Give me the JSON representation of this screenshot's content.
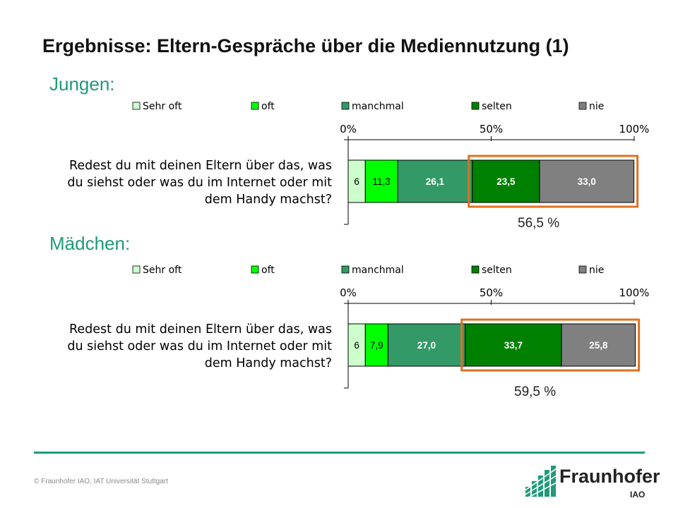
{
  "page": {
    "title": "Ergebnisse: Eltern-Gespräche über die Mediennutzung (1)",
    "copyright": "© Fraunhofer IAO, IAT Universität Stuttgart",
    "logo": {
      "name": "Fraunhofer",
      "sub": "IAO",
      "icon": "fraunhofer-logo-icon"
    }
  },
  "colors": {
    "sehr_oft": "#ccffcc",
    "oft": "#00ff00",
    "manchmal": "#339966",
    "selten": "#008000",
    "nie": "#808080",
    "highlight": "#e07020",
    "accent": "#1f9a7a"
  },
  "chart_data": [
    {
      "type": "bar",
      "orientation": "horizontal",
      "stacked": true,
      "section_label": "Jungen:",
      "categories": [
        "Redest du mit deinen Eltern über das, was du siehst oder was du im Internet oder mit dem Handy machst?"
      ],
      "category_lines": [
        "Redest du mit deinen Eltern über das, was",
        "du siehst oder was du im Internet oder mit",
        "dem Handy machst?"
      ],
      "series": [
        {
          "name": "Sehr oft",
          "values": [
            6
          ],
          "label": "6"
        },
        {
          "name": "oft",
          "values": [
            11.3
          ],
          "label": "11,3"
        },
        {
          "name": "manchmal",
          "values": [
            26.1
          ],
          "label": "26,1"
        },
        {
          "name": "selten",
          "values": [
            23.5
          ],
          "label": "23,5"
        },
        {
          "name": "nie",
          "values": [
            33.0
          ],
          "label": "33,0"
        }
      ],
      "xticks": [
        "0%",
        "50%",
        "100%"
      ],
      "xlim": [
        0,
        100
      ],
      "legend_position": "top",
      "highlight": {
        "from_series": 3,
        "to_series": 4,
        "label": "56,5 %"
      }
    },
    {
      "type": "bar",
      "orientation": "horizontal",
      "stacked": true,
      "section_label": "Mädchen:",
      "categories": [
        "Redest du mit deinen Eltern über das, was du siehst oder was du im Internet oder mit dem Handy machst?"
      ],
      "category_lines": [
        "Redest du mit deinen Eltern über das, was",
        "du siehst oder was du im Internet oder mit",
        "dem Handy machst?"
      ],
      "series": [
        {
          "name": "Sehr oft",
          "values": [
            6
          ],
          "label": "6"
        },
        {
          "name": "oft",
          "values": [
            7.9
          ],
          "label": "7,9"
        },
        {
          "name": "manchmal",
          "values": [
            27.0
          ],
          "label": "27,0"
        },
        {
          "name": "selten",
          "values": [
            33.7
          ],
          "label": "33,7"
        },
        {
          "name": "nie",
          "values": [
            25.8
          ],
          "label": "25,8"
        }
      ],
      "xticks": [
        "0%",
        "50%",
        "100%"
      ],
      "xlim": [
        0,
        100
      ],
      "legend_position": "top",
      "highlight": {
        "from_series": 3,
        "to_series": 4,
        "label": "59,5 %"
      }
    }
  ]
}
